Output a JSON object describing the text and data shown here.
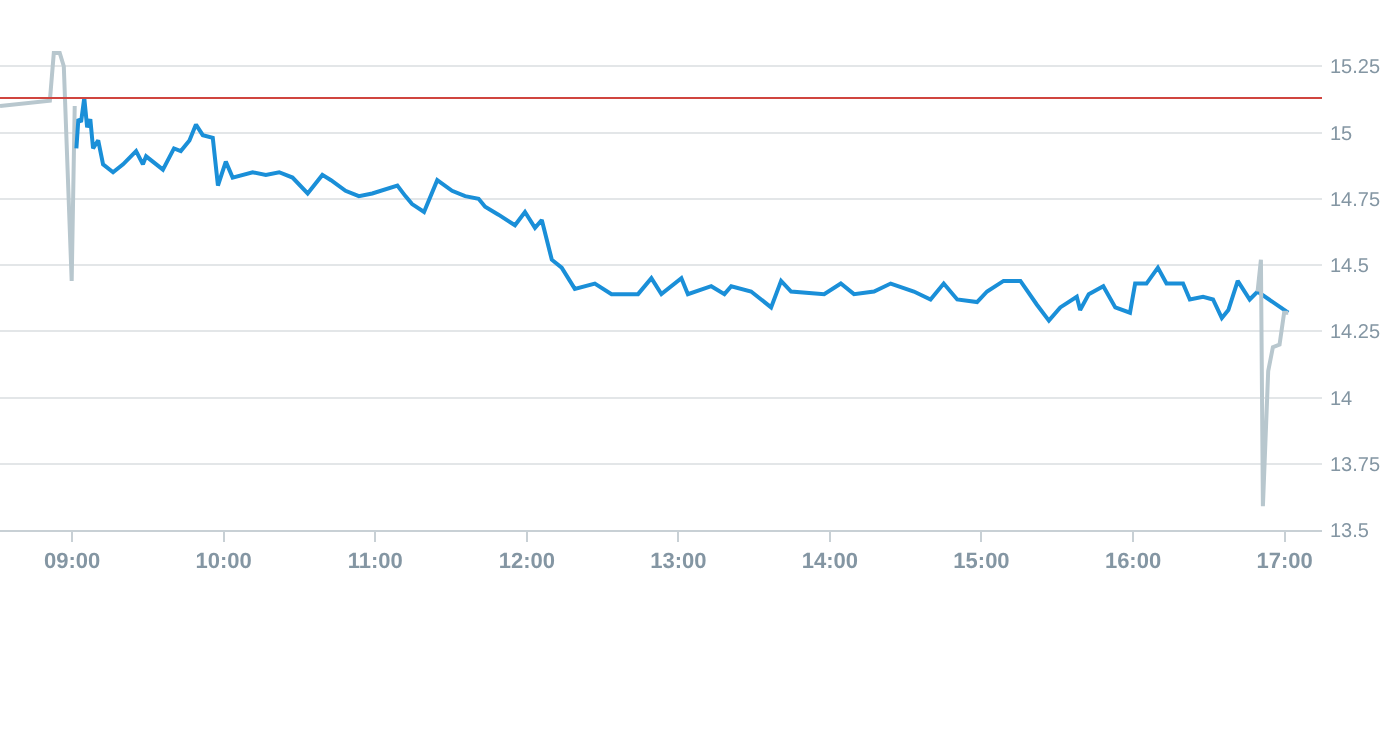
{
  "chart_data": {
    "type": "line",
    "xlim": [
      8.524,
      17.247
    ],
    "xticks": [
      {
        "value": 9,
        "label": "09:00"
      },
      {
        "value": 10,
        "label": "10:00"
      },
      {
        "value": 11,
        "label": "11:00"
      },
      {
        "value": 12,
        "label": "12:00"
      },
      {
        "value": 13,
        "label": "13:00"
      },
      {
        "value": 14,
        "label": "14:00"
      },
      {
        "value": 15,
        "label": "15:00"
      },
      {
        "value": 16,
        "label": "16:00"
      },
      {
        "value": 17,
        "label": "17:00"
      }
    ],
    "ylim": [
      13.5,
      15.5
    ],
    "yticks": [
      13.5,
      13.75,
      14,
      14.25,
      14.5,
      14.75,
      15,
      15.25
    ],
    "grid": "y",
    "ref_lines": [
      {
        "axis": "y",
        "value": 15.13,
        "color": "#d0453f"
      }
    ],
    "series": [
      {
        "color": "#b8c7ce",
        "x": [
          8.524,
          8.853,
          8.879,
          8.918,
          8.945,
          8.997,
          9.017
        ],
        "values": [
          15.1,
          15.12,
          15.3,
          15.3,
          15.25,
          14.44,
          15.1
        ]
      },
      {
        "color": "#1a8fd8",
        "x": [
          9.028,
          9.041,
          9.059,
          9.08,
          9.099,
          9.12,
          9.138,
          9.172,
          9.204,
          9.27,
          9.336,
          9.422,
          9.467,
          9.488,
          9.599,
          9.672,
          9.717,
          9.774,
          9.817,
          9.862,
          9.928,
          9.962,
          10.014,
          10.059,
          10.191,
          10.278,
          10.366,
          10.454,
          10.554,
          10.651,
          10.708,
          10.804,
          10.892,
          10.98,
          11.146,
          11.199,
          11.243,
          11.322,
          11.409,
          11.507,
          11.593,
          11.682,
          11.725,
          11.813,
          11.922,
          11.988,
          12.054,
          12.099,
          12.165,
          12.23,
          12.317,
          12.449,
          12.559,
          12.734,
          12.822,
          12.888,
          13.02,
          13.063,
          13.217,
          13.304,
          13.349,
          13.48,
          13.612,
          13.678,
          13.744,
          13.962,
          14.072,
          14.159,
          14.291,
          14.401,
          14.554,
          14.664,
          14.751,
          14.84,
          14.971,
          15.037,
          15.146,
          15.257,
          15.366,
          15.445,
          15.52,
          15.629,
          15.651,
          15.708,
          15.804,
          15.883,
          15.98,
          16.014,
          16.089,
          16.164,
          16.221,
          16.33,
          16.375,
          16.462,
          16.528,
          16.586,
          16.629,
          16.691,
          16.77,
          16.822,
          17.024
        ],
        "values": [
          14.94,
          15.05,
          15.04,
          15.13,
          15.02,
          15.05,
          14.94,
          14.97,
          14.88,
          14.85,
          14.88,
          14.93,
          14.88,
          14.91,
          14.86,
          14.94,
          14.93,
          14.97,
          15.03,
          14.99,
          14.98,
          14.8,
          14.89,
          14.83,
          14.85,
          14.84,
          14.85,
          14.83,
          14.77,
          14.84,
          14.82,
          14.78,
          14.76,
          14.77,
          14.8,
          14.76,
          14.73,
          14.7,
          14.82,
          14.78,
          14.76,
          14.75,
          14.72,
          14.69,
          14.65,
          14.7,
          14.64,
          14.67,
          14.52,
          14.49,
          14.41,
          14.43,
          14.39,
          14.39,
          14.45,
          14.39,
          14.45,
          14.39,
          14.42,
          14.39,
          14.42,
          14.4,
          14.34,
          14.44,
          14.4,
          14.39,
          14.43,
          14.39,
          14.4,
          14.43,
          14.4,
          14.37,
          14.43,
          14.37,
          14.36,
          14.4,
          14.44,
          14.44,
          14.35,
          14.29,
          14.34,
          14.38,
          14.33,
          14.39,
          14.42,
          14.34,
          14.32,
          14.43,
          14.43,
          14.49,
          14.43,
          14.43,
          14.37,
          14.38,
          14.37,
          14.3,
          14.33,
          14.44,
          14.37,
          14.4,
          14.32
        ]
      },
      {
        "color": "#b8c7ce",
        "x": [
          16.822,
          16.844,
          16.857,
          16.892,
          16.923,
          16.967,
          16.997,
          17.024
        ],
        "values": [
          14.4,
          14.52,
          13.59,
          14.1,
          14.19,
          14.2,
          14.32,
          14.32
        ]
      }
    ]
  }
}
